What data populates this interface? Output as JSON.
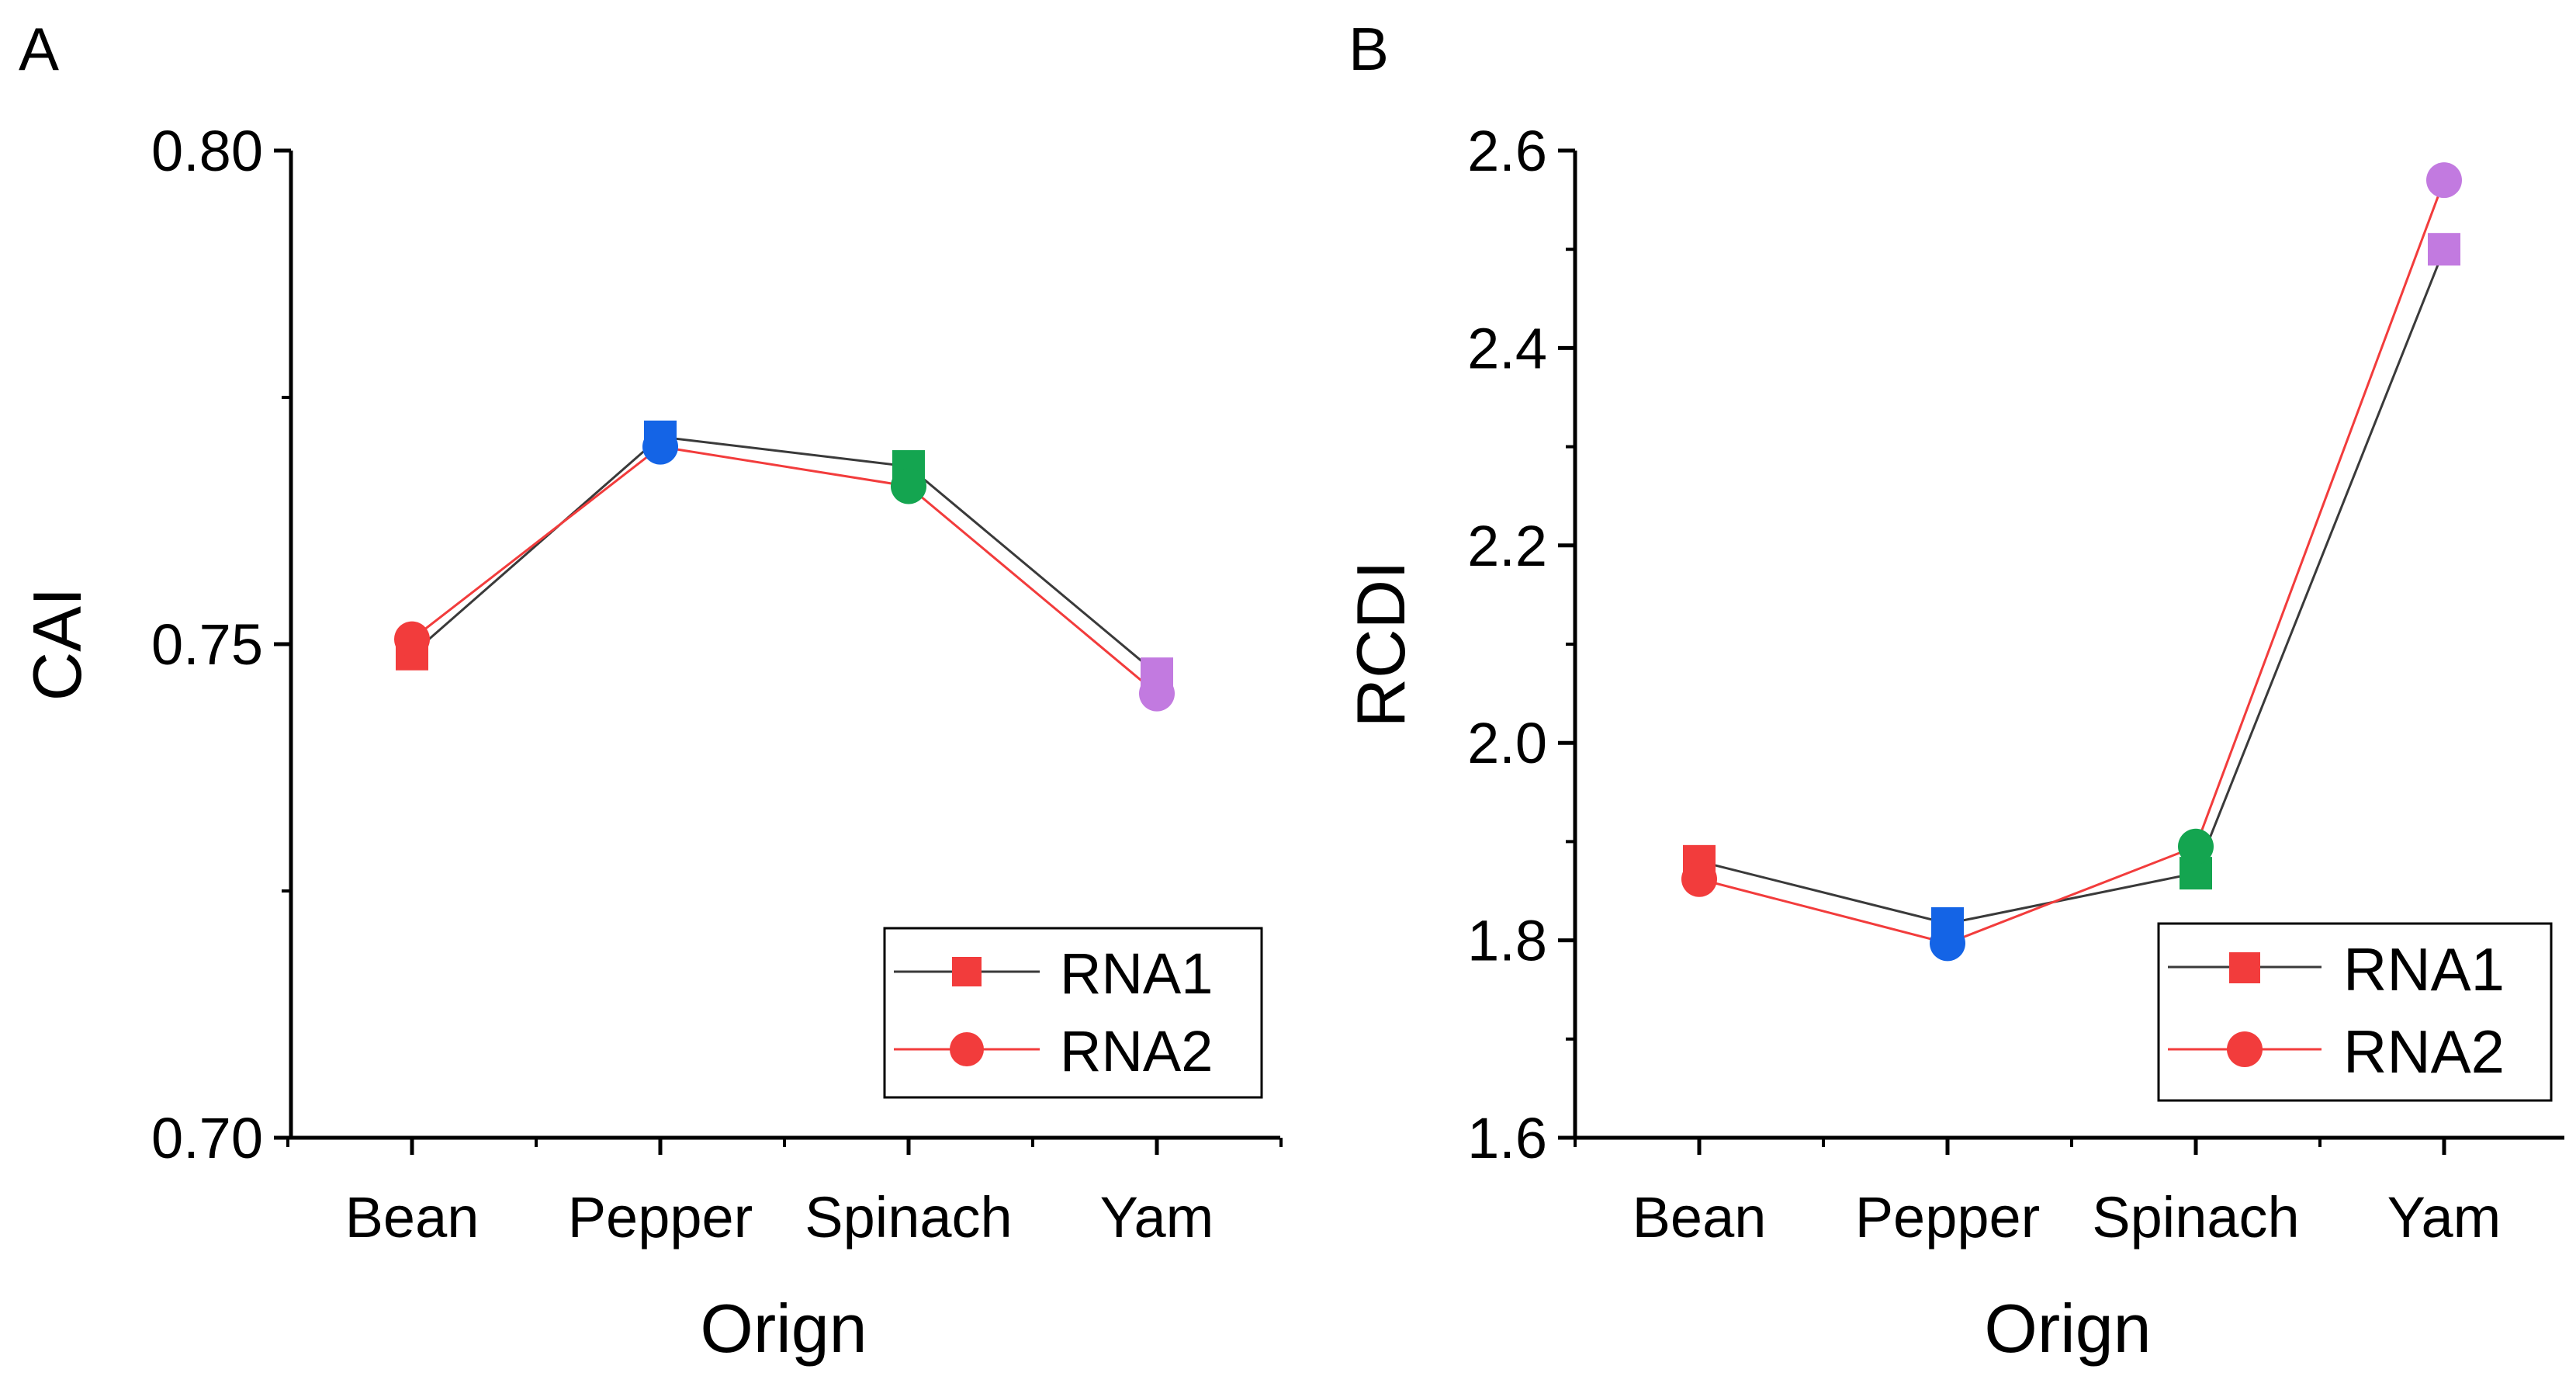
{
  "chart_data": [
    {
      "panel_label": "A",
      "type": "line",
      "categories": [
        "Bean",
        "Pepper",
        "Spinach",
        "Yam"
      ],
      "category_colors": [
        "#f23c3c",
        "#1464e6",
        "#14a550",
        "#c27ae0"
      ],
      "xlabel": "Orign",
      "ylabel": "CAI",
      "ylim": [
        0.7,
        0.8
      ],
      "yticks": [
        0.7,
        0.75,
        0.8
      ],
      "ytick_labels": [
        "0.70",
        "0.75",
        "0.80"
      ],
      "y_minor_step": 0.025,
      "legend_position": "bottom-right",
      "series": [
        {
          "name": "RNA1",
          "marker": "square",
          "line_color": "#3a3a3a",
          "values": [
            0.749,
            0.771,
            0.768,
            0.747
          ]
        },
        {
          "name": "RNA2",
          "marker": "circle",
          "line_color": "#f23c3c",
          "values": [
            0.7505,
            0.77,
            0.766,
            0.745
          ]
        }
      ]
    },
    {
      "panel_label": "B",
      "type": "line",
      "categories": [
        "Bean",
        "Pepper",
        "Spinach",
        "Yam"
      ],
      "category_colors": [
        "#f23c3c",
        "#1464e6",
        "#14a550",
        "#c27ae0"
      ],
      "xlabel": "Orign",
      "ylabel": "RCDI",
      "ylim": [
        1.6,
        2.6
      ],
      "yticks": [
        1.6,
        1.8,
        2.0,
        2.2,
        2.4,
        2.6
      ],
      "ytick_labels": [
        "1.6",
        "1.8",
        "2.0",
        "2.2",
        "2.4",
        "2.6"
      ],
      "y_minor_step": 0.1,
      "legend_position": "bottom-right",
      "series": [
        {
          "name": "RNA1",
          "marker": "square",
          "line_color": "#3a3a3a",
          "values": [
            1.88,
            1.817,
            1.868,
            2.5
          ]
        },
        {
          "name": "RNA2",
          "marker": "circle",
          "line_color": "#f23c3c",
          "values": [
            1.862,
            1.797,
            1.895,
            2.57
          ]
        }
      ]
    }
  ],
  "legend_marker_color": "#f23c3c"
}
